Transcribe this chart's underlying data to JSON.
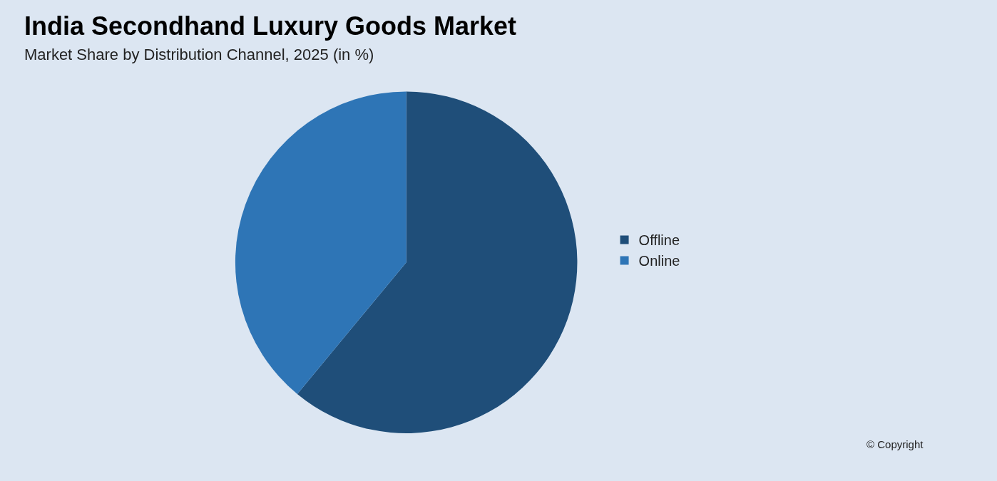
{
  "chart_data": {
    "type": "pie",
    "title": "India Secondhand Luxury Goods Market",
    "subtitle": "Market Share by Distribution Channel, 2025 (in %)",
    "categories": [
      "Offline",
      "Online"
    ],
    "values": [
      61,
      39
    ],
    "colors": [
      "#1f4e79",
      "#2e75b6"
    ],
    "legend": "right",
    "annotations": [
      "© Copyright"
    ]
  }
}
